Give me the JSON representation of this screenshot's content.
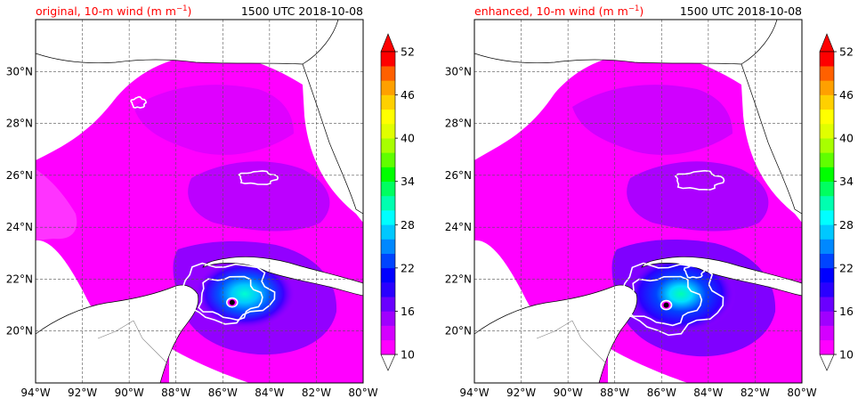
{
  "chart_data": [
    {
      "type": "heatmap",
      "title": "original, 10-m wind (m m",
      "title_sup": "−1",
      "title_close": ")",
      "title_color": "#ff0000",
      "time_label": "1500 UTC 2018-10-08",
      "xlim": [
        -94,
        -80
      ],
      "ylim": [
        18,
        32
      ],
      "x_ticks": [
        {
          "value": -94,
          "label": "94°W"
        },
        {
          "value": -92,
          "label": "92°W"
        },
        {
          "value": -90,
          "label": "90°W"
        },
        {
          "value": -88,
          "label": "88°W"
        },
        {
          "value": -86,
          "label": "86°W"
        },
        {
          "value": -84,
          "label": "84°W"
        },
        {
          "value": -82,
          "label": "82°W"
        },
        {
          "value": -80,
          "label": "80°W"
        }
      ],
      "y_ticks": [
        {
          "value": 20,
          "label": "20°N"
        },
        {
          "value": 22,
          "label": "22°N"
        },
        {
          "value": 24,
          "label": "24°N"
        },
        {
          "value": 26,
          "label": "26°N"
        },
        {
          "value": 28,
          "label": "28°N"
        },
        {
          "value": 30,
          "label": "30°N"
        }
      ],
      "grid": true,
      "storm_center": {
        "lon": -85.6,
        "lat": 21.1
      },
      "wind_contours": [
        {
          "lon": -85.9,
          "lat": 21.5,
          "rx_deg": 2.0,
          "ry_deg": 1.1,
          "speed": 22
        },
        {
          "lon": -85.7,
          "lat": 21.3,
          "rx_deg": 1.3,
          "ry_deg": 0.8,
          "speed": 28
        },
        {
          "lon": -84.5,
          "lat": 25.9,
          "rx_deg": 0.8,
          "ry_deg": 0.25,
          "speed": 18
        },
        {
          "lon": -89.6,
          "lat": 28.8,
          "rx_deg": 0.3,
          "ry_deg": 0.2,
          "speed": 16
        }
      ]
    },
    {
      "type": "heatmap",
      "title": "enhanced, 10-m wind (m m",
      "title_sup": "−1",
      "title_close": ")",
      "title_color": "#ff0000",
      "time_label": "1500 UTC 2018-10-08",
      "xlim": [
        -94,
        -80
      ],
      "ylim": [
        18,
        32
      ],
      "x_ticks": [
        {
          "value": -94,
          "label": "94°W"
        },
        {
          "value": -92,
          "label": "92°W"
        },
        {
          "value": -90,
          "label": "90°W"
        },
        {
          "value": -88,
          "label": "88°W"
        },
        {
          "value": -86,
          "label": "86°W"
        },
        {
          "value": -84,
          "label": "84°W"
        },
        {
          "value": -82,
          "label": "82°W"
        },
        {
          "value": -80,
          "label": "80°W"
        }
      ],
      "y_ticks": [
        {
          "value": 20,
          "label": "20°N"
        },
        {
          "value": 22,
          "label": "22°N"
        },
        {
          "value": 24,
          "label": "24°N"
        },
        {
          "value": 26,
          "label": "26°N"
        },
        {
          "value": 28,
          "label": "28°N"
        },
        {
          "value": 30,
          "label": "30°N"
        }
      ],
      "grid": true,
      "storm_center": {
        "lon": -85.8,
        "lat": 21.0
      },
      "wind_contours": [
        {
          "lon": -85.7,
          "lat": 21.3,
          "rx_deg": 2.2,
          "ry_deg": 1.3,
          "speed": 22
        },
        {
          "lon": -85.9,
          "lat": 21.2,
          "rx_deg": 1.5,
          "ry_deg": 0.9,
          "speed": 30
        },
        {
          "lon": -84.4,
          "lat": 25.8,
          "rx_deg": 1.0,
          "ry_deg": 0.35,
          "speed": 18
        },
        {
          "lon": -84.6,
          "lat": 22.3,
          "rx_deg": 0.4,
          "ry_deg": 0.25,
          "speed": 26
        }
      ]
    }
  ],
  "colorbar": {
    "min": 10,
    "max": 52,
    "ticks": [
      {
        "value": 10,
        "label": "10"
      },
      {
        "value": 16,
        "label": "16"
      },
      {
        "value": 22,
        "label": "22"
      },
      {
        "value": 28,
        "label": "28"
      },
      {
        "value": 34,
        "label": "34"
      },
      {
        "value": 40,
        "label": "40"
      },
      {
        "value": 46,
        "label": "46"
      },
      {
        "value": 52,
        "label": "52"
      }
    ],
    "levels": [
      {
        "from": 10,
        "to": 12,
        "color": "#ff00ff"
      },
      {
        "from": 12,
        "to": 14,
        "color": "#d400ff"
      },
      {
        "from": 14,
        "to": 16,
        "color": "#a000ff"
      },
      {
        "from": 16,
        "to": 18,
        "color": "#6a00ff"
      },
      {
        "from": 18,
        "to": 20,
        "color": "#2a00ff"
      },
      {
        "from": 20,
        "to": 22,
        "color": "#0000ff"
      },
      {
        "from": 22,
        "to": 24,
        "color": "#0044ff"
      },
      {
        "from": 24,
        "to": 26,
        "color": "#0088ff"
      },
      {
        "from": 26,
        "to": 28,
        "color": "#00c8ff"
      },
      {
        "from": 28,
        "to": 30,
        "color": "#00ffff"
      },
      {
        "from": 30,
        "to": 32,
        "color": "#00ffb0"
      },
      {
        "from": 32,
        "to": 34,
        "color": "#00ff60"
      },
      {
        "from": 34,
        "to": 36,
        "color": "#00ff00"
      },
      {
        "from": 36,
        "to": 38,
        "color": "#60ff00"
      },
      {
        "from": 38,
        "to": 40,
        "color": "#a8ff00"
      },
      {
        "from": 40,
        "to": 42,
        "color": "#e0ff00"
      },
      {
        "from": 42,
        "to": 44,
        "color": "#ffff00"
      },
      {
        "from": 44,
        "to": 46,
        "color": "#ffd000"
      },
      {
        "from": 46,
        "to": 48,
        "color": "#ffa000"
      },
      {
        "from": 48,
        "to": 50,
        "color": "#ff6000"
      },
      {
        "from": 50,
        "to": 52,
        "color": "#ff0000"
      }
    ],
    "under_color": "#ffffff",
    "over_color": "#ff0000"
  }
}
